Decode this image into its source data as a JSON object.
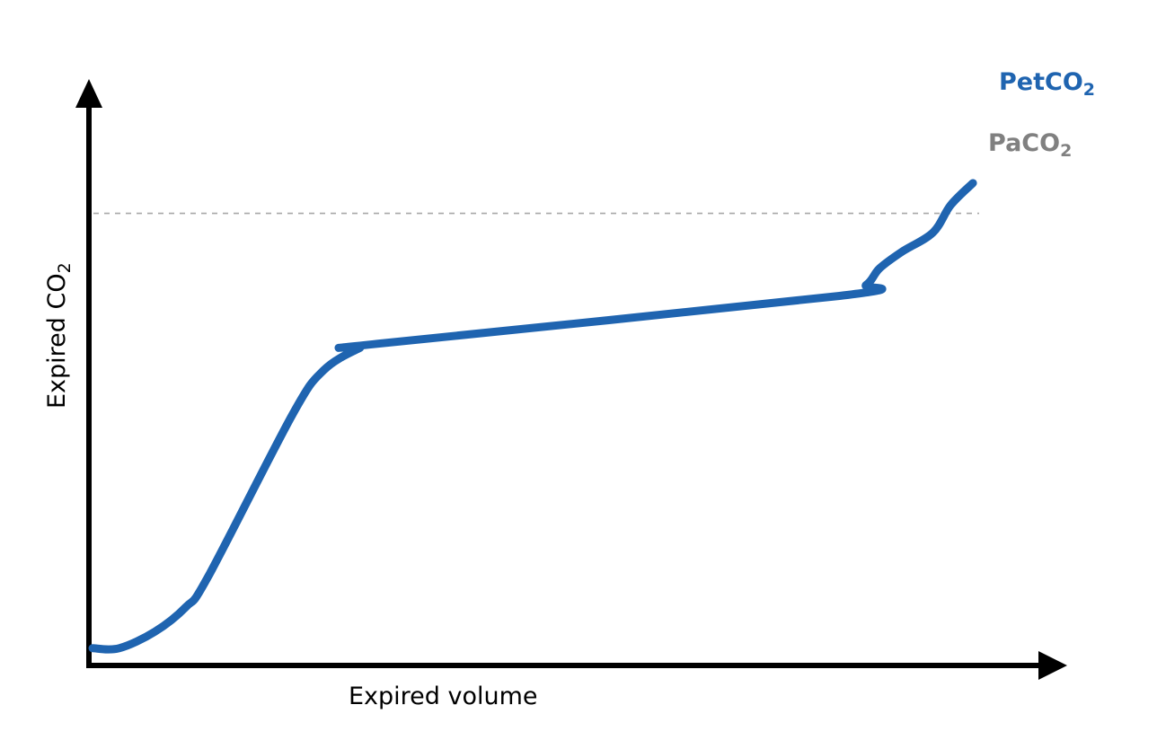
{
  "chart_data": {
    "type": "line",
    "xlabel": "Expired volume",
    "ylabel": {
      "main": "Expired CO",
      "sub": "2"
    },
    "xlim": [
      0,
      100
    ],
    "ylim": [
      0,
      100
    ],
    "grid": false,
    "ticks": false,
    "series": [
      {
        "name": "PetCO",
        "name_sub": "2",
        "color": "#1f64b0",
        "x": [
          0,
          3,
          7,
          10.5,
          13,
          22.5,
          26,
          30,
          32,
          84,
          87,
          88.5,
          91,
          94.5,
          96.5,
          99
        ],
        "y": [
          1.5,
          1.5,
          4.5,
          9,
          14.5,
          44,
          52,
          56,
          56.8,
          65.5,
          67.5,
          70.5,
          73.5,
          77,
          82,
          86
        ]
      }
    ],
    "reference_lines": [
      {
        "label": "PaCO",
        "label_sub": "2",
        "y": 80.5,
        "style": "dashed",
        "color": "#808080"
      }
    ]
  }
}
